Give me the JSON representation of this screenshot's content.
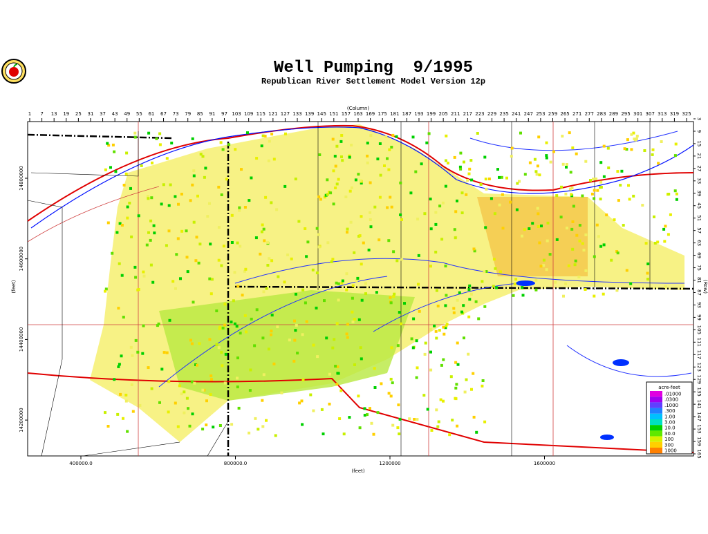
{
  "title": "Well Pumping  9/1995",
  "subtitle": "Republican River Settlement Model Version 12p",
  "column_axis": {
    "label": "(Column)",
    "ticks": [
      1,
      7,
      13,
      19,
      25,
      31,
      37,
      43,
      49,
      55,
      61,
      67,
      73,
      79,
      85,
      91,
      97,
      103,
      109,
      115,
      121,
      127,
      133,
      139,
      145,
      151,
      157,
      163,
      169,
      175,
      181,
      187,
      193,
      199,
      205,
      211,
      217,
      223,
      229,
      235,
      241,
      247,
      253,
      259,
      265,
      271,
      277,
      283,
      289,
      295,
      301,
      307,
      313,
      319,
      325
    ]
  },
  "row_axis": {
    "label": "(Row)",
    "ticks": [
      3,
      9,
      15,
      21,
      27,
      33,
      39,
      45,
      51,
      57,
      63,
      69,
      75,
      81,
      87,
      93,
      99,
      105,
      111,
      117,
      123,
      129,
      135,
      141,
      147,
      153,
      159,
      165
    ]
  },
  "x_axis": {
    "label": "(feet)",
    "ticks": [
      {
        "value": 400000,
        "label": "400000.0"
      },
      {
        "value": 800000,
        "label": "800000.0"
      },
      1200000,
      1600000
    ]
  },
  "y_axis": {
    "label": "(feet)",
    "ticks": [
      14800000,
      14600000,
      14400000,
      14200000
    ]
  },
  "legend": {
    "title": "acre-feet",
    "entries": [
      {
        "label": ".01000",
        "color": "#e000e0"
      },
      {
        "label": ".0300",
        "color": "#a000f0"
      },
      {
        "label": ".1000",
        "color": "#6040ff"
      },
      {
        "label": ".300",
        "color": "#2080ff"
      },
      {
        "label": "1.00",
        "color": "#00c0ff"
      },
      {
        "label": "3.00",
        "color": "#00e0c0"
      },
      {
        "label": "10.0",
        "color": "#00d000"
      },
      {
        "label": "30.0",
        "color": "#60e800"
      },
      {
        "label": "100",
        "color": "#d8f000"
      },
      {
        "label": "300",
        "color": "#ffd000"
      },
      {
        "label": "1000",
        "color": "#ff8000"
      }
    ]
  }
}
